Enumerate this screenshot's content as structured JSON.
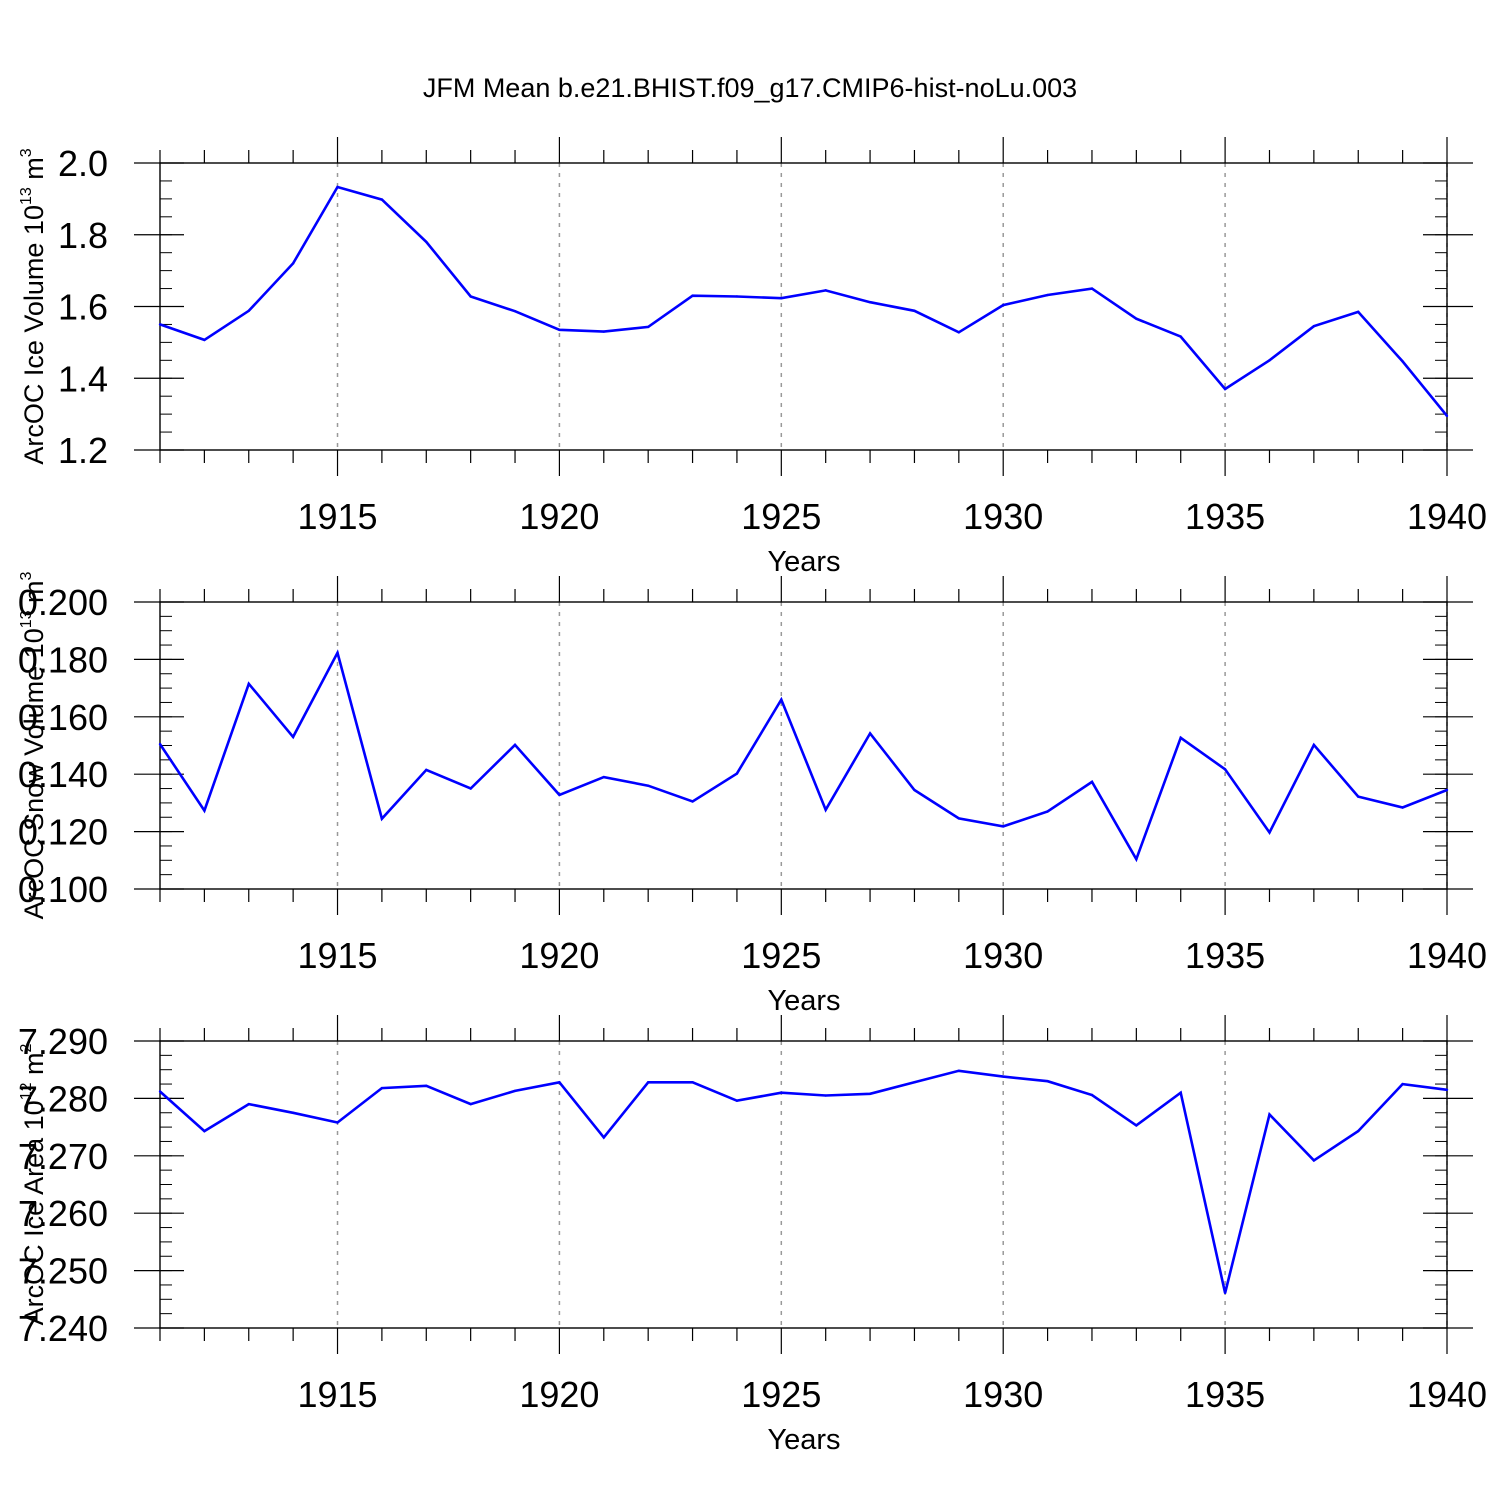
{
  "title": "JFM Mean b.e21.BHIST.f09_g17.CMIP6-hist-noLu.003",
  "colors": {
    "line": "#0000ff",
    "axis": "#000000",
    "grid": "#999999"
  },
  "chart_data": [
    {
      "type": "line",
      "ylabel": "ArcOC Ice Volume 10",
      "ylabel_exponent": "13",
      "ylabel_unit": "m",
      "ylabel_unit_exponent": "3",
      "xlabel": "Years",
      "xlim": [
        1911,
        1940
      ],
      "ylim": [
        1.2,
        2.0
      ],
      "yticks": [
        1.2,
        1.4,
        1.6,
        1.8,
        2.0
      ],
      "ytick_labels": [
        "1.2",
        "1.4",
        "1.6",
        "1.8",
        "2.0"
      ],
      "yminor_step": 0.05,
      "xticks": [
        1915,
        1920,
        1925,
        1930,
        1935,
        1940
      ],
      "xtick_labels": [
        "1915",
        "1920",
        "1925",
        "1930",
        "1935",
        "1940"
      ],
      "x": [
        1911,
        1912,
        1913,
        1914,
        1915,
        1916,
        1917,
        1918,
        1919,
        1920,
        1921,
        1922,
        1923,
        1924,
        1925,
        1926,
        1927,
        1928,
        1929,
        1930,
        1931,
        1932,
        1933,
        1934,
        1935,
        1936,
        1937,
        1938,
        1939,
        1940
      ],
      "values": [
        1.55,
        1.507,
        1.588,
        1.72,
        1.933,
        1.898,
        1.78,
        1.628,
        1.587,
        1.535,
        1.53,
        1.543,
        1.63,
        1.628,
        1.623,
        1.645,
        1.612,
        1.588,
        1.528,
        1.604,
        1.632,
        1.65,
        1.566,
        1.516,
        1.37,
        1.45,
        1.545,
        1.585,
        1.447,
        1.295
      ]
    },
    {
      "type": "line",
      "ylabel": "ArcOC Snow Volume 10",
      "ylabel_exponent": "13",
      "ylabel_unit": "m",
      "ylabel_unit_exponent": "3",
      "xlabel": "Years",
      "xlim": [
        1911,
        1940
      ],
      "ylim": [
        0.1,
        0.2
      ],
      "yticks": [
        0.1,
        0.12,
        0.14,
        0.16,
        0.18,
        0.2
      ],
      "ytick_labels": [
        "0.100",
        "0.120",
        "0.140",
        "0.160",
        "0.180",
        "0.200"
      ],
      "yminor_step": 0.005,
      "xticks": [
        1915,
        1920,
        1925,
        1930,
        1935,
        1940
      ],
      "xtick_labels": [
        "1915",
        "1920",
        "1925",
        "1930",
        "1935",
        "1940"
      ],
      "x": [
        1911,
        1912,
        1913,
        1914,
        1915,
        1916,
        1917,
        1918,
        1919,
        1920,
        1921,
        1922,
        1923,
        1924,
        1925,
        1926,
        1927,
        1928,
        1929,
        1930,
        1931,
        1932,
        1933,
        1934,
        1935,
        1936,
        1937,
        1938,
        1939,
        1940
      ],
      "values": [
        0.1505,
        0.1273,
        0.1715,
        0.153,
        0.1823,
        0.1245,
        0.1415,
        0.135,
        0.1502,
        0.1328,
        0.139,
        0.136,
        0.1305,
        0.1402,
        0.166,
        0.1276,
        0.1542,
        0.1345,
        0.1246,
        0.1218,
        0.127,
        0.1373,
        0.1104,
        0.1527,
        0.1417,
        0.1197,
        0.1502,
        0.1322,
        0.1284,
        0.1345
      ]
    },
    {
      "type": "line",
      "ylabel": "ArcOC Ice Area 10",
      "ylabel_exponent": "12",
      "ylabel_unit": "m",
      "ylabel_unit_exponent": "2",
      "xlabel": "Years",
      "xlim": [
        1911,
        1940
      ],
      "ylim": [
        7.24,
        7.29
      ],
      "yticks": [
        7.24,
        7.25,
        7.26,
        7.27,
        7.28,
        7.29
      ],
      "ytick_labels": [
        "7.240",
        "7.250",
        "7.260",
        "7.270",
        "7.280",
        "7.290"
      ],
      "yminor_step": 0.0025,
      "xticks": [
        1915,
        1920,
        1925,
        1930,
        1935,
        1940
      ],
      "xtick_labels": [
        "1915",
        "1920",
        "1925",
        "1930",
        "1935",
        "1940"
      ],
      "x": [
        1911,
        1912,
        1913,
        1914,
        1915,
        1916,
        1917,
        1918,
        1919,
        1920,
        1921,
        1922,
        1923,
        1924,
        1925,
        1926,
        1927,
        1928,
        1929,
        1930,
        1931,
        1932,
        1933,
        1934,
        1935,
        1936,
        1937,
        1938,
        1939,
        1940
      ],
      "values": [
        7.2812,
        7.2743,
        7.279,
        7.2775,
        7.2758,
        7.2818,
        7.2822,
        7.279,
        7.2813,
        7.2828,
        7.2732,
        7.2828,
        7.2828,
        7.2796,
        7.281,
        7.2805,
        7.2808,
        7.2828,
        7.2848,
        7.2838,
        7.283,
        7.2806,
        7.2753,
        7.281,
        7.2461,
        7.2772,
        7.2692,
        7.2743,
        7.2825,
        7.2815
      ]
    }
  ]
}
